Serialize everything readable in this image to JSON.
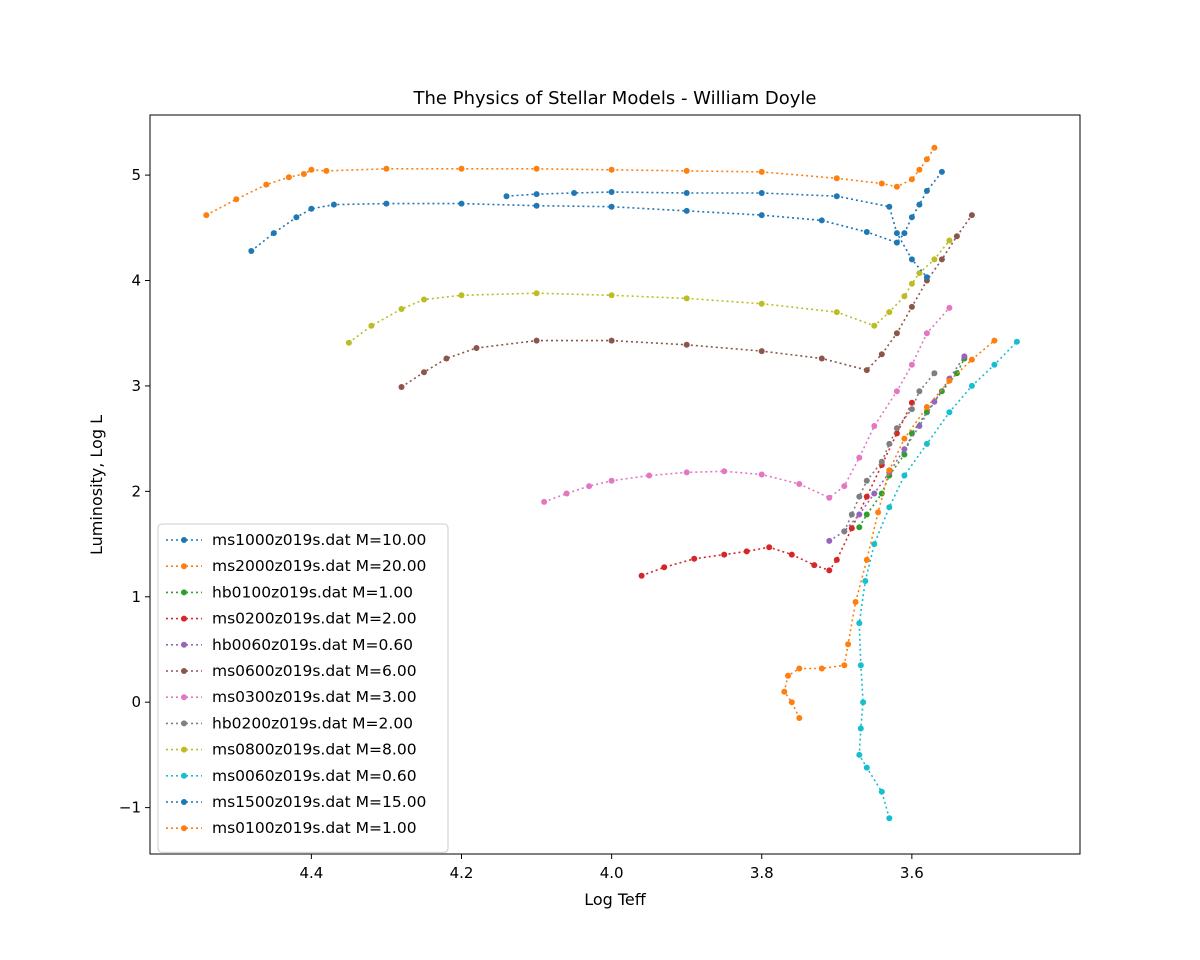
{
  "chart_data": {
    "type": "line",
    "title": "The Physics of Stellar Models - William Doyle",
    "xlabel": "Log Teff",
    "ylabel": "Luminosity, Log L",
    "xlim": [
      4.615,
      3.376
    ],
    "ylim": [
      -1.44,
      5.57
    ],
    "x_inverted": true,
    "xticks": [
      4.4,
      4.2,
      4.0,
      3.8,
      3.6
    ],
    "xtick_labels": [
      "4.4",
      "4.2",
      "4.0",
      "3.8",
      "3.6"
    ],
    "yticks": [
      -1,
      0,
      1,
      2,
      3,
      4,
      5
    ],
    "ytick_labels": [
      "−1",
      "0",
      "1",
      "2",
      "3",
      "4",
      "5"
    ],
    "grid": false,
    "legend_position": "lower-left",
    "line_style": "dotted",
    "marker": "circle",
    "series": [
      {
        "name": "ms1000z019s.dat M=10.00",
        "color": "#1f77b4",
        "x": [
          4.48,
          4.45,
          4.42,
          4.4,
          4.37,
          4.3,
          4.2,
          4.1,
          4.0,
          3.9,
          3.8,
          3.72,
          3.66,
          3.62,
          3.61,
          3.6,
          3.59,
          3.58,
          3.56
        ],
        "y": [
          4.28,
          4.45,
          4.6,
          4.68,
          4.72,
          4.73,
          4.73,
          4.71,
          4.7,
          4.66,
          4.62,
          4.57,
          4.46,
          4.36,
          4.45,
          4.6,
          4.72,
          4.85,
          5.03
        ]
      },
      {
        "name": "ms2000z019s.dat M=20.00",
        "color": "#ff7f0e",
        "x": [
          4.54,
          4.5,
          4.46,
          4.43,
          4.41,
          4.4,
          4.38,
          4.3,
          4.2,
          4.1,
          4.0,
          3.9,
          3.8,
          3.7,
          3.64,
          3.62,
          3.6,
          3.59,
          3.58,
          3.57
        ],
        "y": [
          4.62,
          4.77,
          4.91,
          4.98,
          5.01,
          5.05,
          5.04,
          5.06,
          5.06,
          5.06,
          5.05,
          5.04,
          5.03,
          4.97,
          4.92,
          4.89,
          4.96,
          5.05,
          5.15,
          5.26
        ]
      },
      {
        "name": "hb0100z019s.dat M=1.00",
        "color": "#2ca02c",
        "x": [
          3.67,
          3.66,
          3.64,
          3.63,
          3.61,
          3.6,
          3.58,
          3.56,
          3.54,
          3.53
        ],
        "y": [
          1.66,
          1.78,
          1.98,
          2.15,
          2.35,
          2.55,
          2.75,
          2.95,
          3.12,
          3.26
        ]
      },
      {
        "name": "ms0200z019s.dat M=2.00",
        "color": "#d62728",
        "x": [
          3.96,
          3.93,
          3.89,
          3.85,
          3.82,
          3.79,
          3.76,
          3.73,
          3.71,
          3.7,
          3.68,
          3.66,
          3.64,
          3.62,
          3.6
        ],
        "y": [
          1.2,
          1.28,
          1.36,
          1.4,
          1.43,
          1.47,
          1.4,
          1.3,
          1.25,
          1.35,
          1.65,
          1.95,
          2.25,
          2.55,
          2.84
        ]
      },
      {
        "name": "hb0060z019s.dat M=0.60",
        "color": "#9467bd",
        "x": [
          3.71,
          3.69,
          3.67,
          3.65,
          3.63,
          3.61,
          3.59,
          3.57,
          3.55,
          3.53
        ],
        "y": [
          1.53,
          1.62,
          1.78,
          1.98,
          2.18,
          2.4,
          2.62,
          2.85,
          3.07,
          3.28
        ]
      },
      {
        "name": "ms0600z019s.dat M=6.00",
        "color": "#8c564b",
        "x": [
          4.28,
          4.25,
          4.22,
          4.18,
          4.1,
          4.0,
          3.9,
          3.8,
          3.72,
          3.66,
          3.64,
          3.62,
          3.6,
          3.58,
          3.56,
          3.54,
          3.52
        ],
        "y": [
          2.99,
          3.13,
          3.26,
          3.36,
          3.43,
          3.43,
          3.39,
          3.33,
          3.26,
          3.15,
          3.3,
          3.5,
          3.75,
          4.0,
          4.2,
          4.42,
          4.62
        ]
      },
      {
        "name": "ms0300z019s.dat M=3.00",
        "color": "#e377c2",
        "x": [
          4.09,
          4.06,
          4.03,
          4.0,
          3.95,
          3.9,
          3.85,
          3.8,
          3.75,
          3.71,
          3.69,
          3.67,
          3.65,
          3.62,
          3.6,
          3.58,
          3.55
        ],
        "y": [
          1.9,
          1.98,
          2.05,
          2.1,
          2.15,
          2.18,
          2.19,
          2.16,
          2.07,
          1.94,
          2.05,
          2.32,
          2.62,
          2.95,
          3.2,
          3.5,
          3.74
        ]
      },
      {
        "name": "hb0200z019s.dat M=2.00",
        "color": "#7f7f7f",
        "x": [
          3.69,
          3.68,
          3.67,
          3.66,
          3.64,
          3.63,
          3.62,
          3.6,
          3.59,
          3.57
        ],
        "y": [
          1.62,
          1.78,
          1.95,
          2.1,
          2.28,
          2.45,
          2.6,
          2.78,
          2.95,
          3.12
        ]
      },
      {
        "name": "ms0800z019s.dat M=8.00",
        "color": "#bcbd22",
        "x": [
          4.35,
          4.32,
          4.28,
          4.25,
          4.2,
          4.1,
          4.0,
          3.9,
          3.8,
          3.7,
          3.65,
          3.63,
          3.61,
          3.6,
          3.59,
          3.57,
          3.55
        ],
        "y": [
          3.41,
          3.57,
          3.73,
          3.82,
          3.86,
          3.88,
          3.86,
          3.83,
          3.78,
          3.7,
          3.57,
          3.7,
          3.85,
          3.97,
          4.07,
          4.2,
          4.38
        ]
      },
      {
        "name": "ms0060z019s.dat M=0.60",
        "color": "#17becf",
        "x": [
          3.63,
          3.64,
          3.66,
          3.67,
          3.668,
          3.665,
          3.668,
          3.67,
          3.662,
          3.65,
          3.63,
          3.61,
          3.58,
          3.55,
          3.52,
          3.49,
          3.46
        ],
        "y": [
          -1.1,
          -0.85,
          -0.62,
          -0.5,
          -0.25,
          0.0,
          0.35,
          0.75,
          1.15,
          1.5,
          1.85,
          2.15,
          2.45,
          2.75,
          3.0,
          3.2,
          3.42
        ]
      },
      {
        "name": "ms1500z019s.dat M=15.00",
        "color": "#1f77b4",
        "x": [
          4.14,
          4.1,
          4.05,
          4.0,
          3.9,
          3.8,
          3.7,
          3.63,
          3.62,
          3.6,
          3.58
        ],
        "y": [
          4.8,
          4.82,
          4.83,
          4.84,
          4.83,
          4.83,
          4.8,
          4.7,
          4.45,
          4.2,
          4.03
        ]
      },
      {
        "name": "ms0100z019s.dat M=1.00",
        "color": "#ff7f0e",
        "x": [
          3.75,
          3.76,
          3.77,
          3.765,
          3.75,
          3.72,
          3.69,
          3.685,
          3.675,
          3.66,
          3.645,
          3.63,
          3.61,
          3.58,
          3.55,
          3.52,
          3.49
        ],
        "y": [
          -0.15,
          -0.0,
          0.1,
          0.25,
          0.32,
          0.32,
          0.35,
          0.55,
          0.95,
          1.35,
          1.8,
          2.2,
          2.5,
          2.8,
          3.05,
          3.25,
          3.43
        ]
      }
    ]
  }
}
